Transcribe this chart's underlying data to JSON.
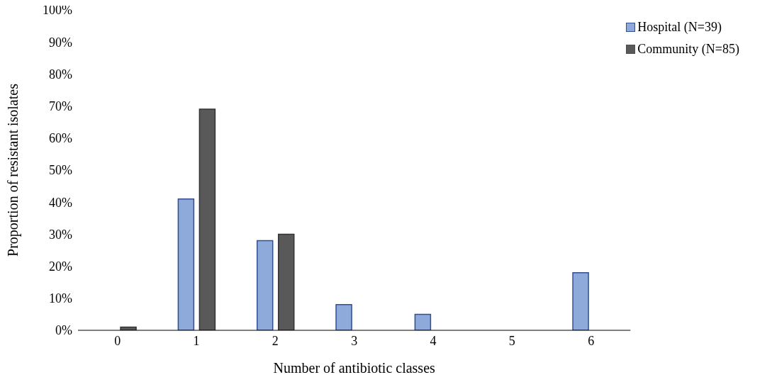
{
  "chart_data": {
    "type": "bar",
    "xlabel": "Number of antibiotic classes",
    "ylabel": "Proportion of resistant isolates",
    "categories": [
      "0",
      "1",
      "2",
      "3",
      "4",
      "5",
      "6"
    ],
    "series": [
      {
        "name": "Hospital (N=39)",
        "color": "#8eaadb",
        "values": [
          0,
          41,
          28,
          8,
          5,
          0,
          18
        ]
      },
      {
        "name": "Community (N=85)",
        "color": "#595959",
        "values": [
          1,
          69,
          30,
          0,
          0,
          0,
          0
        ]
      }
    ],
    "ylim": [
      0,
      100
    ],
    "yticks": [
      {
        "value": 0,
        "label": "0%"
      },
      {
        "value": 10,
        "label": "10%"
      },
      {
        "value": 20,
        "label": "20%"
      },
      {
        "value": 30,
        "label": "30%"
      },
      {
        "value": 40,
        "label": "40%"
      },
      {
        "value": 50,
        "label": "50%"
      },
      {
        "value": 60,
        "label": "60%"
      },
      {
        "value": 70,
        "label": "70%"
      },
      {
        "value": 80,
        "label": "80%"
      },
      {
        "value": 90,
        "label": "90%"
      },
      {
        "value": 100,
        "label": "100%"
      }
    ],
    "grid": false,
    "legend": "top right"
  }
}
